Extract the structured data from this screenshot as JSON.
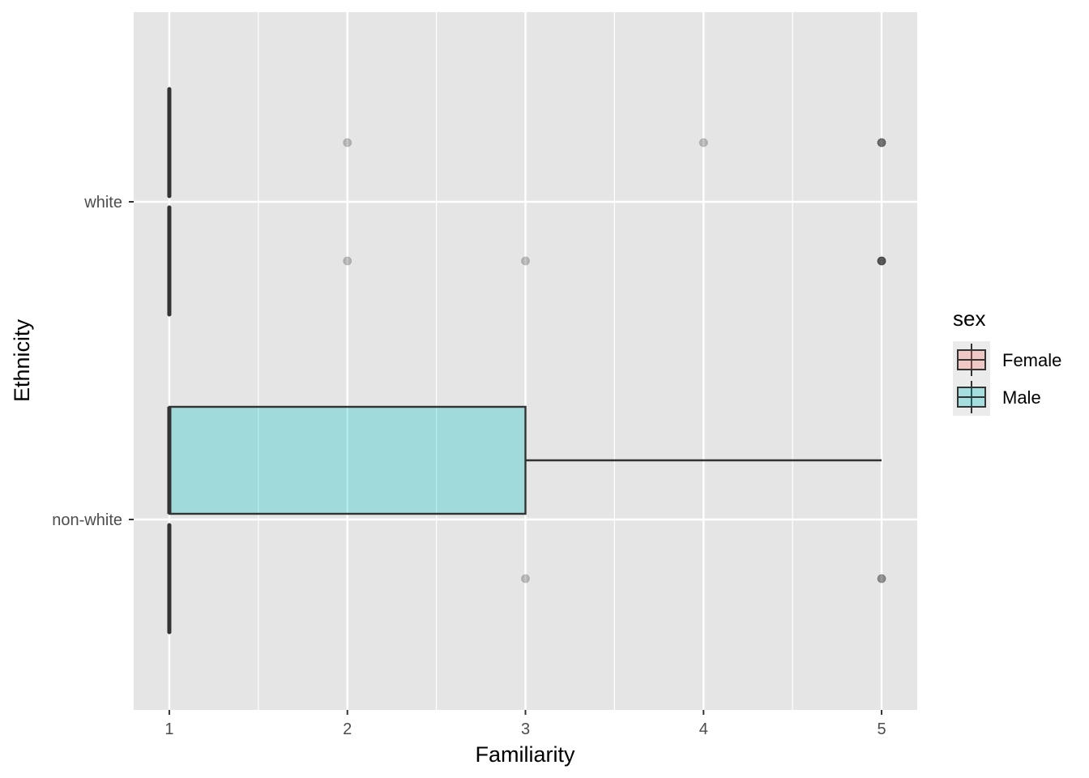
{
  "chart_data": {
    "type": "boxplot",
    "orientation": "horizontal",
    "xlabel": "Familiarity",
    "ylabel": "Ethnicity",
    "xlim": [
      0.8,
      5.2
    ],
    "x_ticks": [
      1,
      2,
      3,
      4,
      5
    ],
    "categories": [
      "white",
      "non-white"
    ],
    "grid": true,
    "legend": {
      "title": "sex",
      "position": "right",
      "entries": [
        {
          "name": "Female",
          "color": "#F8766D"
        },
        {
          "name": "Male",
          "color": "#00BFC4"
        }
      ]
    },
    "boxes": [
      {
        "category": "white",
        "group": "Female",
        "min": 1,
        "q1": 1,
        "median": 1,
        "q3": 1,
        "max": 1,
        "outliers": [
          2,
          4,
          5,
          5,
          5
        ]
      },
      {
        "category": "white",
        "group": "Male",
        "min": 1,
        "q1": 1,
        "median": 1,
        "q3": 1,
        "max": 1,
        "outliers": [
          2,
          3,
          5,
          5,
          5,
          5
        ]
      },
      {
        "category": "non-white",
        "group": "Female",
        "min": 1,
        "q1": 1,
        "median": 1,
        "q3": 3,
        "max": 5,
        "outliers": []
      },
      {
        "category": "non-white",
        "group": "Male",
        "min": 1,
        "q1": 1,
        "median": 1,
        "q3": 1,
        "max": 1,
        "outliers": [
          3,
          5,
          5
        ]
      }
    ],
    "colors": {
      "panel_bg": "#E5E5E5",
      "grid": "#FFFFFF",
      "box_line": "#333333",
      "box_fill": "#00BFC4",
      "legend_key_bg": "#EBEBEB"
    }
  }
}
